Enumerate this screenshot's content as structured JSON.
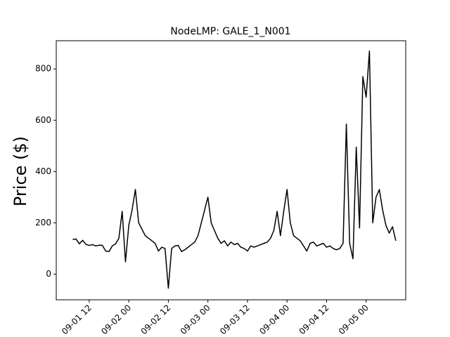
{
  "chart_data": {
    "type": "line",
    "title": "NodeLMP: GALE_1_N001",
    "y_label": "Price ($)",
    "x": [
      "09-01 07",
      "09-01 08",
      "09-01 09",
      "09-01 10",
      "09-01 11",
      "09-01 12",
      "09-01 13",
      "09-01 14",
      "09-01 15",
      "09-01 16",
      "09-01 17",
      "09-01 18",
      "09-01 19",
      "09-01 20",
      "09-01 21",
      "09-01 22",
      "09-01 23",
      "09-02 00",
      "09-02 01",
      "09-02 02",
      "09-02 03",
      "09-02 04",
      "09-02 05",
      "09-02 06",
      "09-02 07",
      "09-02 08",
      "09-02 09",
      "09-02 10",
      "09-02 11",
      "09-02 12",
      "09-02 13",
      "09-02 14",
      "09-02 15",
      "09-02 16",
      "09-02 17",
      "09-02 18",
      "09-02 19",
      "09-02 20",
      "09-02 21",
      "09-02 22",
      "09-02 23",
      "09-03 00",
      "09-03 01",
      "09-03 02",
      "09-03 03",
      "09-03 04",
      "09-03 05",
      "09-03 06",
      "09-03 07",
      "09-03 08",
      "09-03 09",
      "09-03 10",
      "09-03 11",
      "09-03 12",
      "09-03 13",
      "09-03 14",
      "09-03 15",
      "09-03 16",
      "09-03 17",
      "09-03 18",
      "09-03 19",
      "09-03 20",
      "09-03 21",
      "09-03 22",
      "09-03 23",
      "09-04 00",
      "09-04 01",
      "09-04 02",
      "09-04 03",
      "09-04 04",
      "09-04 05",
      "09-04 06",
      "09-04 07",
      "09-04 08",
      "09-04 09",
      "09-04 10",
      "09-04 11",
      "09-04 12",
      "09-04 13",
      "09-04 14",
      "09-04 15",
      "09-04 16",
      "09-04 17",
      "09-04 18",
      "09-04 19",
      "09-04 20",
      "09-04 21",
      "09-04 22",
      "09-04 23",
      "09-05 00",
      "09-05 01",
      "09-05 02",
      "09-05 03",
      "09-05 04",
      "09-05 05",
      "09-05 06",
      "09-05 07",
      "09-05 08",
      "09-05 09"
    ],
    "series": [
      {
        "color": "#000000",
        "values": [
          135,
          137,
          118,
          132,
          116,
          112,
          115,
          110,
          113,
          112,
          90,
          88,
          110,
          118,
          140,
          245,
          48,
          190,
          250,
          330,
          200,
          175,
          150,
          140,
          130,
          120,
          90,
          105,
          100,
          -55,
          100,
          110,
          112,
          88,
          95,
          105,
          115,
          125,
          150,
          200,
          250,
          300,
          200,
          170,
          140,
          120,
          130,
          110,
          125,
          115,
          120,
          105,
          100,
          90,
          110,
          105,
          110,
          115,
          120,
          125,
          140,
          170,
          245,
          150,
          245,
          330,
          200,
          150,
          140,
          130,
          110,
          90,
          120,
          125,
          110,
          115,
          120,
          105,
          110,
          100,
          95,
          100,
          120,
          585,
          120,
          60,
          495,
          180,
          770,
          690,
          870,
          200,
          300,
          330,
          250,
          190,
          160,
          185,
          130
        ]
      }
    ],
    "xlim": [
      "09-01 02",
      "09-05 12"
    ],
    "xticks": [
      "09-01 12",
      "09-02 00",
      "09-02 12",
      "09-03 00",
      "09-03 12",
      "09-04 00",
      "09-04 12",
      "09-05 00"
    ],
    "ylim": [
      -100,
      910
    ],
    "yticks": [
      0,
      200,
      400,
      600,
      800
    ]
  }
}
